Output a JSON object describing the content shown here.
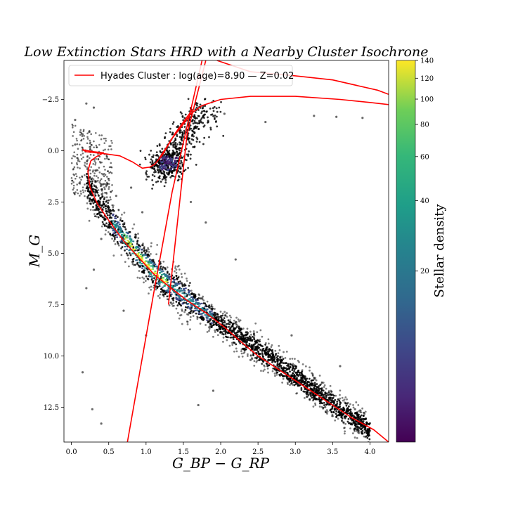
{
  "chart_data": {
    "type": "scatter",
    "title": "Low Extinction Stars HRD with a Nearby Cluster Isochrone",
    "xlabel": "G_BP − G_RP",
    "ylabel": "M_G",
    "xlim": [
      -0.1,
      4.25
    ],
    "ylim": [
      14.2,
      -4.4
    ],
    "y_inverted": true,
    "x_ticks": [
      0.0,
      0.5,
      1.0,
      1.5,
      2.0,
      2.5,
      3.0,
      3.5,
      4.0
    ],
    "x_tick_labels": [
      "0.0",
      "0.5",
      "1.0",
      "1.5",
      "2.0",
      "2.5",
      "3.0",
      "3.5",
      "4.0"
    ],
    "y_ticks": [
      -2.5,
      0.0,
      2.5,
      5.0,
      7.5,
      10.0,
      12.5
    ],
    "y_tick_labels": [
      "−2.5",
      "0.0",
      "2.5",
      "5.0",
      "7.5",
      "10.0",
      "12.5"
    ],
    "colorbar": {
      "label": "Stellar density",
      "colormap": "viridis",
      "range": [
        1,
        140
      ],
      "ticks": [
        20,
        40,
        60,
        80,
        100,
        120,
        140
      ],
      "tick_labels": [
        "20",
        "40",
        "60",
        "80",
        "100",
        "120",
        "140"
      ]
    },
    "legend": {
      "position": "top-left",
      "entries": [
        {
          "label": "Hyades Cluster : log(age)=8.90 — Z=0.02",
          "color": "#ff0000"
        }
      ]
    },
    "series": [
      {
        "kind": "density",
        "main_sequence_ridge": [
          {
            "x": 0.2,
            "y": 1.5
          },
          {
            "x": 0.35,
            "y": 2.6
          },
          {
            "x": 0.55,
            "y": 3.5
          },
          {
            "x": 0.75,
            "y": 4.4
          },
          {
            "x": 0.95,
            "y": 5.3
          },
          {
            "x": 1.1,
            "y": 5.9
          },
          {
            "x": 1.3,
            "y": 6.5
          },
          {
            "x": 1.55,
            "y": 7.2
          },
          {
            "x": 1.8,
            "y": 7.9
          },
          {
            "x": 2.05,
            "y": 8.6
          },
          {
            "x": 2.3,
            "y": 9.2
          },
          {
            "x": 2.55,
            "y": 9.8
          },
          {
            "x": 2.8,
            "y": 10.5
          },
          {
            "x": 3.05,
            "y": 11.1
          },
          {
            "x": 3.3,
            "y": 11.8
          },
          {
            "x": 3.55,
            "y": 12.5
          },
          {
            "x": 3.8,
            "y": 13.1
          },
          {
            "x": 4.0,
            "y": 13.6
          }
        ],
        "red_clump": {
          "x": 1.3,
          "y": 0.6
        },
        "giant_branch": [
          {
            "x": 1.15,
            "y": 1.4
          },
          {
            "x": 1.25,
            "y": 0.6
          },
          {
            "x": 1.4,
            "y": -0.2
          },
          {
            "x": 1.55,
            "y": -0.9
          },
          {
            "x": 1.7,
            "y": -1.6
          },
          {
            "x": 1.85,
            "y": -2.2
          }
        ]
      },
      {
        "name": "Hyades Cluster : log(age)=8.90 — Z=0.02",
        "kind": "isochrone",
        "color": "#ff0000",
        "segments": [
          [
            {
              "x": 4.25,
              "y": 14.2
            },
            {
              "x": 4.05,
              "y": 13.6
            },
            {
              "x": 3.75,
              "y": 13.0
            },
            {
              "x": 3.5,
              "y": 12.4
            },
            {
              "x": 3.25,
              "y": 11.8
            },
            {
              "x": 3.0,
              "y": 11.2
            },
            {
              "x": 2.75,
              "y": 10.6
            },
            {
              "x": 2.5,
              "y": 10.0
            },
            {
              "x": 2.3,
              "y": 9.4
            },
            {
              "x": 2.05,
              "y": 8.6
            },
            {
              "x": 1.8,
              "y": 7.9
            },
            {
              "x": 1.55,
              "y": 7.3
            },
            {
              "x": 1.3,
              "y": 6.6
            },
            {
              "x": 1.1,
              "y": 6.0
            },
            {
              "x": 0.9,
              "y": 5.2
            },
            {
              "x": 0.7,
              "y": 4.4
            },
            {
              "x": 0.5,
              "y": 3.4
            },
            {
              "x": 0.35,
              "y": 2.6
            },
            {
              "x": 0.25,
              "y": 1.8
            },
            {
              "x": 0.22,
              "y": 1.0
            },
            {
              "x": 0.26,
              "y": 0.5
            },
            {
              "x": 0.33,
              "y": 0.3
            },
            {
              "x": 0.43,
              "y": 0.1
            },
            {
              "x": 0.3,
              "y": 0.05
            },
            {
              "x": 0.15,
              "y": -0.05
            },
            {
              "x": 0.2,
              "y": 0.05
            },
            {
              "x": 0.45,
              "y": 0.15
            },
            {
              "x": 0.65,
              "y": 0.25
            },
            {
              "x": 0.82,
              "y": 0.55
            },
            {
              "x": 0.95,
              "y": 0.85
            },
            {
              "x": 1.05,
              "y": 0.8
            },
            {
              "x": 1.12,
              "y": 0.65
            },
            {
              "x": 1.22,
              "y": 0.2
            },
            {
              "x": 1.35,
              "y": -0.6
            },
            {
              "x": 1.5,
              "y": -1.3
            },
            {
              "x": 1.6,
              "y": -1.8
            },
            {
              "x": 1.75,
              "y": -2.2
            },
            {
              "x": 2.0,
              "y": -2.5
            },
            {
              "x": 2.4,
              "y": -2.65
            },
            {
              "x": 3.0,
              "y": -2.65
            },
            {
              "x": 3.6,
              "y": -2.5
            },
            {
              "x": 4.0,
              "y": -2.35
            },
            {
              "x": 4.25,
              "y": -2.25
            }
          ],
          [
            {
              "x": 1.18,
              "y": 0.35
            },
            {
              "x": 1.28,
              "y": -0.2
            },
            {
              "x": 1.4,
              "y": -0.9
            },
            {
              "x": 1.5,
              "y": -1.4
            },
            {
              "x": 1.62,
              "y": -2.0
            }
          ],
          [
            {
              "x": 1.3,
              "y": 7.5
            },
            {
              "x": 1.55,
              "y": -0.8
            },
            {
              "x": 1.8,
              "y": -4.4
            }
          ],
          [
            {
              "x": 0.75,
              "y": 14.2
            },
            {
              "x": 1.1,
              "y": 7.0
            },
            {
              "x": 1.35,
              "y": 2.0
            },
            {
              "x": 1.75,
              "y": -4.4
            }
          ],
          [
            {
              "x": 1.95,
              "y": -4.4
            },
            {
              "x": 2.4,
              "y": -3.85
            },
            {
              "x": 3.0,
              "y": -3.65
            },
            {
              "x": 3.5,
              "y": -3.45
            },
            {
              "x": 4.1,
              "y": -2.95
            },
            {
              "x": 4.25,
              "y": -2.75
            }
          ]
        ]
      },
      {
        "kind": "outliers",
        "points": [
          {
            "x": 0.05,
            "y": -1.5
          },
          {
            "x": 0.2,
            "y": -2.3
          },
          {
            "x": 0.3,
            "y": -2.1
          },
          {
            "x": 0.15,
            "y": -0.8
          },
          {
            "x": 0.05,
            "y": -0.3
          },
          {
            "x": 0.4,
            "y": 1.7
          },
          {
            "x": 0.6,
            "y": 2.2
          },
          {
            "x": 0.8,
            "y": 1.8
          },
          {
            "x": 0.3,
            "y": 5.8
          },
          {
            "x": 0.2,
            "y": 6.7
          },
          {
            "x": 0.4,
            "y": 4.3
          },
          {
            "x": 0.15,
            "y": 10.8
          },
          {
            "x": 0.28,
            "y": 12.6
          },
          {
            "x": 0.4,
            "y": 13.3
          },
          {
            "x": 0.7,
            "y": 7.8
          },
          {
            "x": 1.0,
            "y": 9.0
          },
          {
            "x": 1.9,
            "y": 11.7
          },
          {
            "x": 1.7,
            "y": 12.4
          },
          {
            "x": 2.95,
            "y": 9.0
          },
          {
            "x": 3.6,
            "y": 10.5
          },
          {
            "x": 3.4,
            "y": 12.5
          },
          {
            "x": 3.8,
            "y": 12.6
          },
          {
            "x": 3.25,
            "y": -1.7
          },
          {
            "x": 3.55,
            "y": -1.65
          },
          {
            "x": 3.9,
            "y": -1.6
          },
          {
            "x": 2.6,
            "y": -1.4
          },
          {
            "x": 2.05,
            "y": -1.8
          },
          {
            "x": 1.6,
            "y": 2.5
          },
          {
            "x": 2.2,
            "y": 5.3
          },
          {
            "x": 0.95,
            "y": 3.0
          },
          {
            "x": 1.8,
            "y": 3.5
          },
          {
            "x": 2.4,
            "y": 10.2
          }
        ]
      }
    ]
  }
}
